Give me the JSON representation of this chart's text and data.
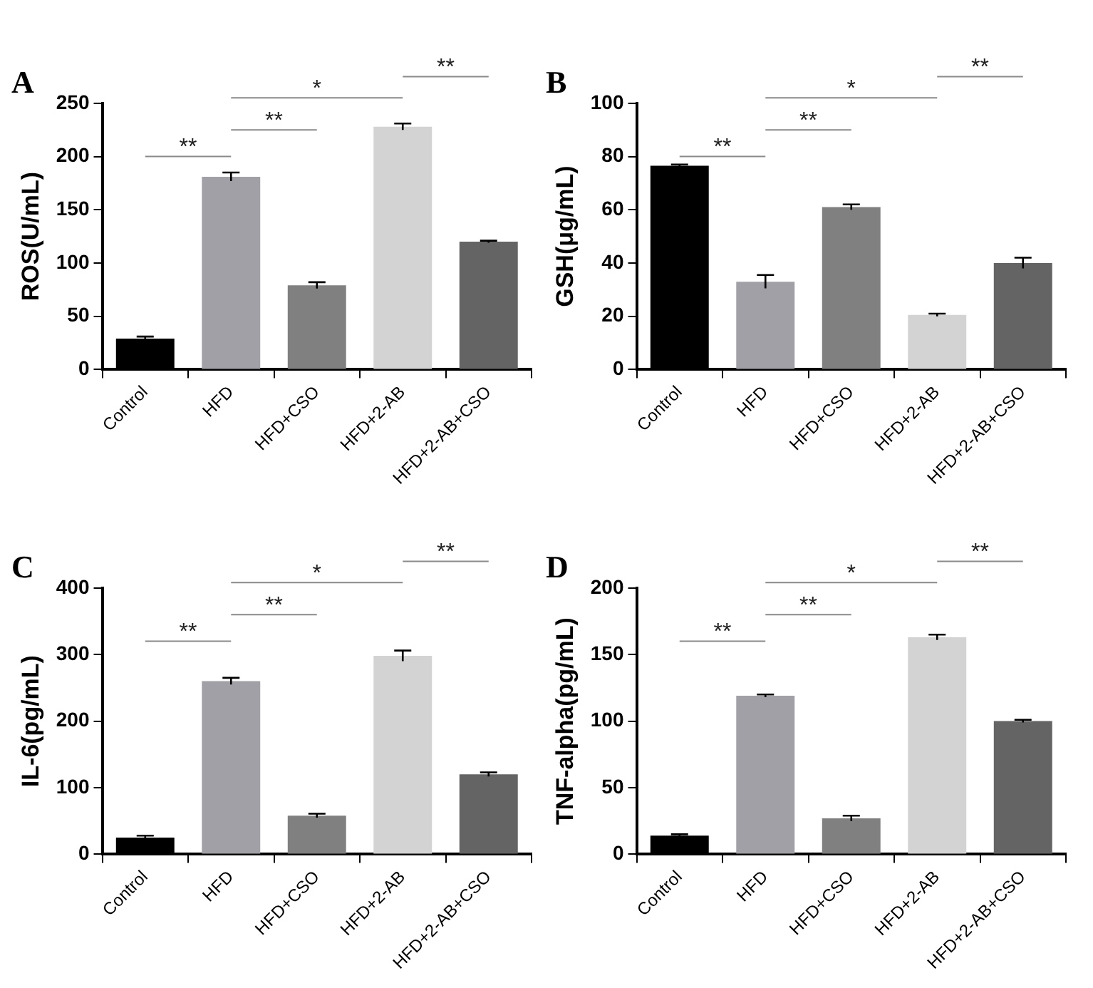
{
  "chart_data": [
    {
      "type": "bar",
      "title": "A",
      "ylabel": "ROS(U/mL)",
      "categories": [
        "Control",
        "HFD",
        "HFD+CSO",
        "HFD+2-AB",
        "HFD+2-AB+CSO"
      ],
      "values": [
        29,
        181,
        79,
        228,
        120
      ],
      "errors": [
        2,
        4,
        3,
        3,
        1
      ],
      "colors": [
        "#000000",
        "#a0a0a6",
        "#808080",
        "#d3d3d3",
        "#646464"
      ],
      "ylim": [
        0,
        250
      ],
      "yticks": [
        0,
        50,
        100,
        150,
        200,
        250
      ],
      "grid": false,
      "annotations": [
        "**",
        "**",
        "*",
        "**"
      ]
    },
    {
      "type": "bar",
      "title": "B",
      "ylabel": "GSH(μg/mL)",
      "categories": [
        "Control",
        "HFD",
        "HFD+CSO",
        "HFD+2-AB",
        "HFD+2-AB+CSO"
      ],
      "values": [
        76.5,
        33,
        61,
        20.5,
        40
      ],
      "errors": [
        0.5,
        2.5,
        1,
        0.5,
        2
      ],
      "colors": [
        "#000000",
        "#a0a0a6",
        "#808080",
        "#d3d3d3",
        "#646464"
      ],
      "ylim": [
        0,
        100
      ],
      "yticks": [
        0,
        20,
        40,
        60,
        80,
        100
      ],
      "grid": false,
      "annotations": [
        "**",
        "**",
        "*",
        "**"
      ]
    },
    {
      "type": "bar",
      "title": "C",
      "ylabel": "IL-6(pg/mL)",
      "categories": [
        "Control",
        "HFD",
        "HFD+CSO",
        "HFD+2-AB",
        "HFD+2-AB+CSO"
      ],
      "values": [
        25,
        260,
        58,
        298,
        120
      ],
      "errors": [
        3,
        5,
        3,
        8,
        3
      ],
      "colors": [
        "#000000",
        "#a0a0a6",
        "#808080",
        "#d3d3d3",
        "#646464"
      ],
      "ylim": [
        0,
        400
      ],
      "yticks": [
        0,
        100,
        200,
        300,
        400
      ],
      "grid": false,
      "annotations": [
        "**",
        "**",
        "*",
        "**"
      ]
    },
    {
      "type": "bar",
      "title": "D",
      "ylabel": "TNF-alpha(pg/mL)",
      "categories": [
        "Control",
        "HFD",
        "HFD+CSO",
        "HFD+2-AB",
        "HFD+2-AB+CSO"
      ],
      "values": [
        14,
        119,
        27,
        163,
        100
      ],
      "errors": [
        1,
        1,
        2,
        2,
        1
      ],
      "colors": [
        "#000000",
        "#a0a0a6",
        "#808080",
        "#d3d3d3",
        "#646464"
      ],
      "ylim": [
        0,
        200
      ],
      "yticks": [
        0,
        50,
        100,
        150,
        200
      ],
      "grid": false,
      "annotations": [
        "**",
        "**",
        "*",
        "**"
      ]
    }
  ]
}
